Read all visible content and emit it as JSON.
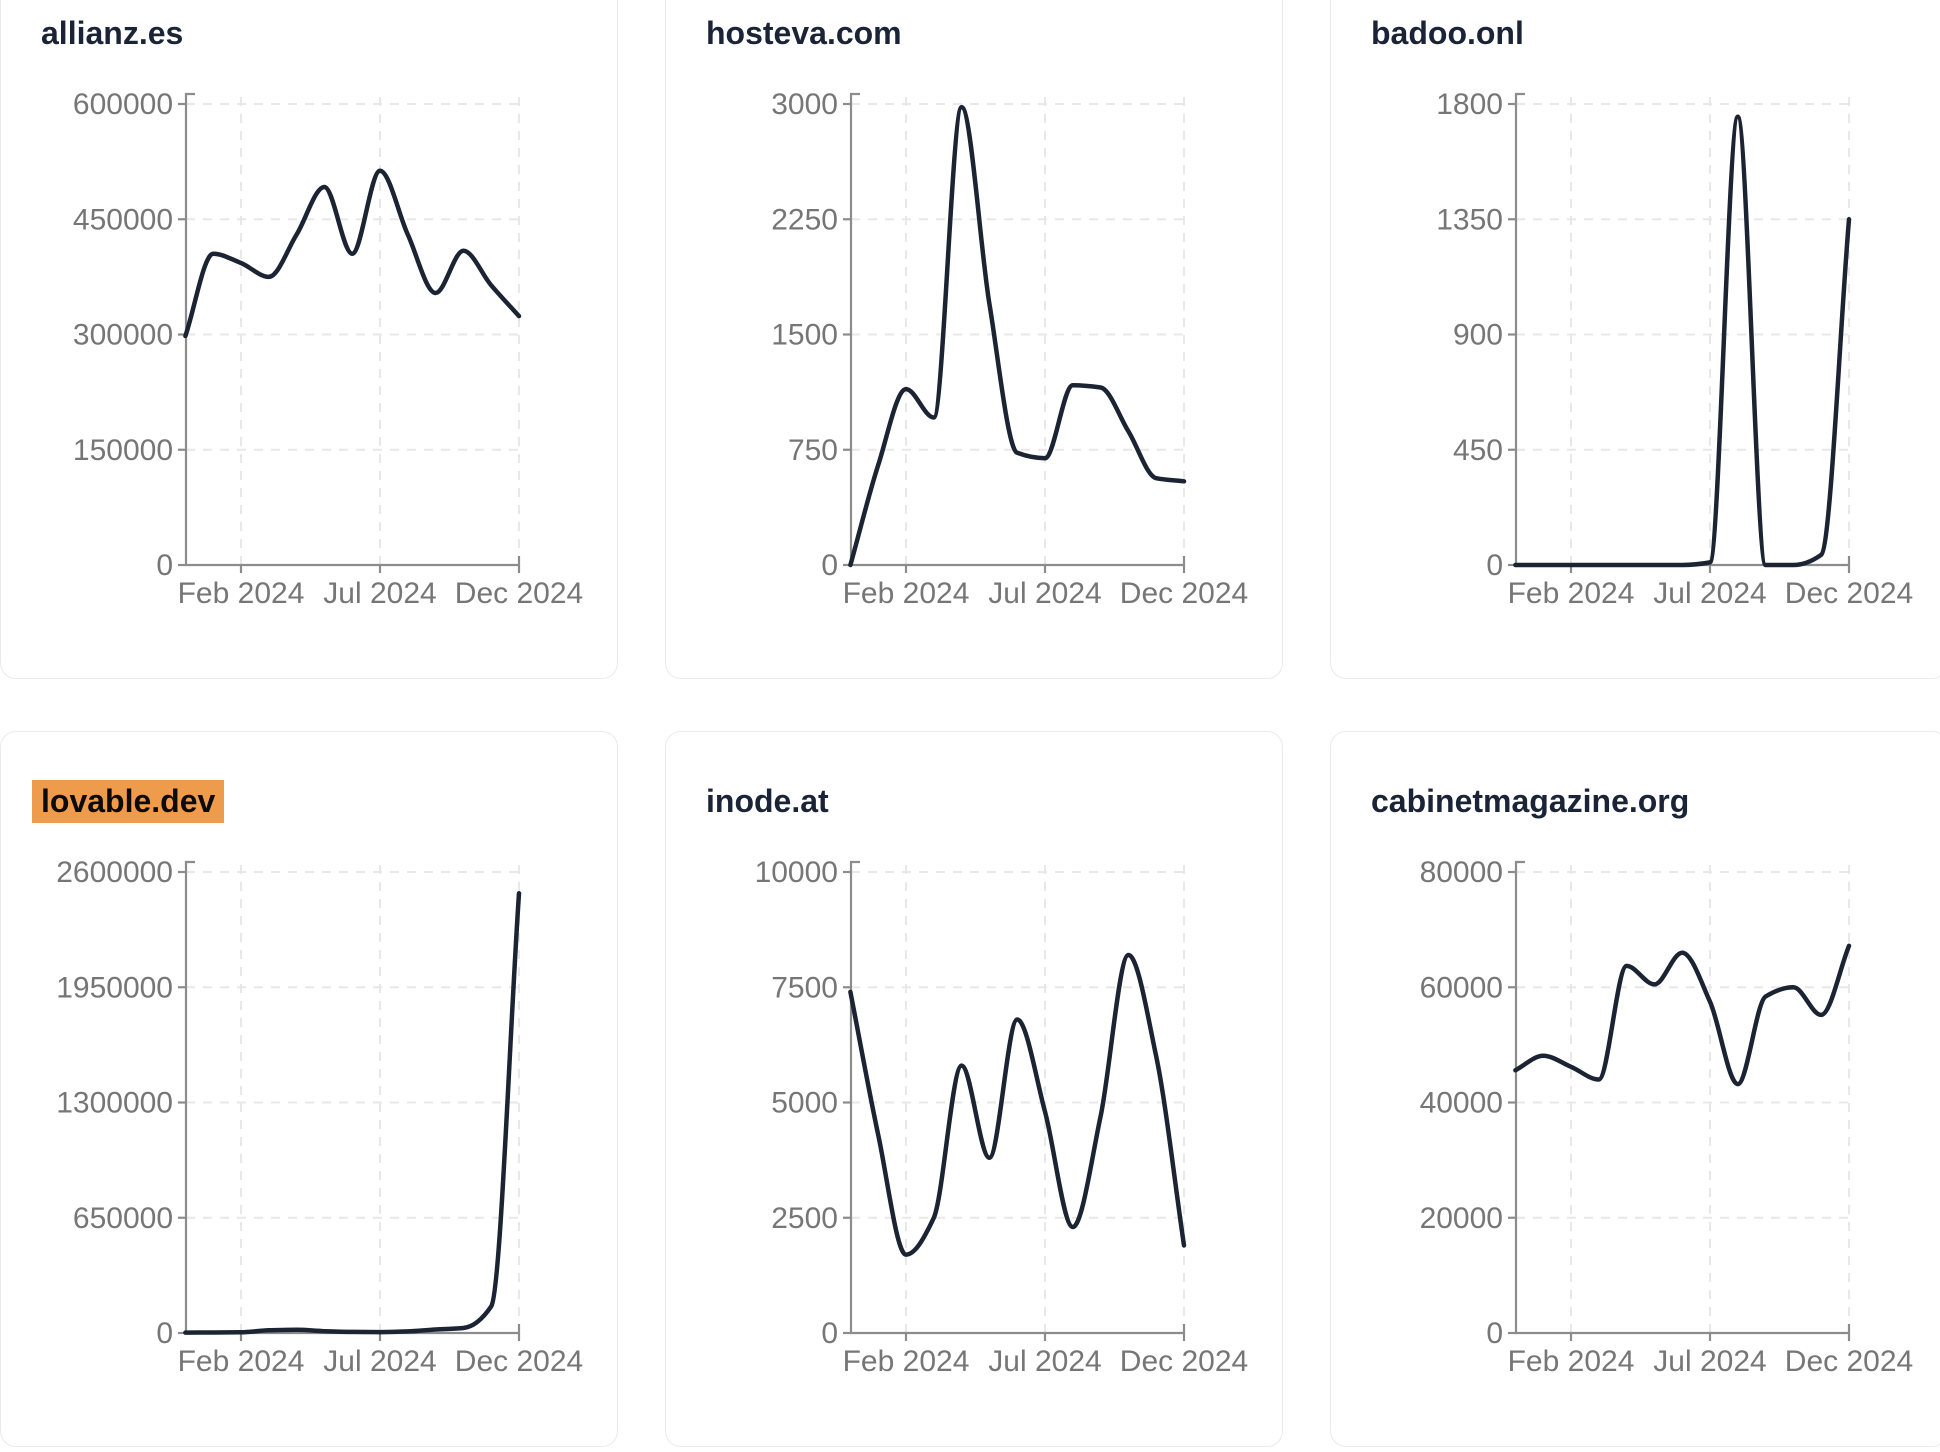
{
  "page": {
    "background": "#ffffff",
    "card_border_color": "#e9ebef",
    "title_color": "#1b2437",
    "highlight_bg_color": "#ef9b4c",
    "highlight_text_color": "#0b0b0b",
    "line_color": "#1c2434",
    "axis_color": "#8c8c8c",
    "tick_label_color": "#767676",
    "grid_color": "#e8e8e8"
  },
  "chart_data": [
    {
      "type": "line",
      "title": "allianz.es",
      "highlighted": false,
      "x": [
        "Dec 2023",
        "Jan 2024",
        "Feb 2024",
        "Mar 2024",
        "Apr 2024",
        "May 2024",
        "Jun 2024",
        "Jul 2024",
        "Aug 2024",
        "Sep 2024",
        "Oct 2024",
        "Nov 2024",
        "Dec 2024"
      ],
      "values": [
        298000,
        405000,
        393000,
        375000,
        430000,
        492000,
        405000,
        513000,
        430000,
        354000,
        409000,
        364000,
        324000
      ],
      "ylim": [
        0,
        600000
      ],
      "yticks": [
        0,
        150000,
        300000,
        450000,
        600000
      ],
      "xticks": [
        "Feb 2024",
        "Jul 2024",
        "Dec 2024"
      ],
      "xtick_indices": [
        2,
        7,
        12
      ],
      "grid": true,
      "legend": "none"
    },
    {
      "type": "line",
      "title": "hosteva.com",
      "highlighted": false,
      "x": [
        "Dec 2023",
        "Jan 2024",
        "Feb 2024",
        "Mar 2024",
        "Apr 2024",
        "May 2024",
        "Jun 2024",
        "Jul 2024",
        "Aug 2024",
        "Sep 2024",
        "Oct 2024",
        "Nov 2024",
        "Dec 2024"
      ],
      "values": [
        0,
        650,
        1145,
        960,
        2980,
        1700,
        730,
        695,
        1170,
        1155,
        870,
        565,
        545
      ],
      "ylim": [
        0,
        3000
      ],
      "yticks": [
        0,
        750,
        1500,
        2250,
        3000
      ],
      "xticks": [
        "Feb 2024",
        "Jul 2024",
        "Dec 2024"
      ],
      "xtick_indices": [
        2,
        7,
        12
      ],
      "grid": true,
      "legend": "none"
    },
    {
      "type": "line",
      "title": "badoo.onl",
      "highlighted": false,
      "x": [
        "Dec 2023",
        "Jan 2024",
        "Feb 2024",
        "Mar 2024",
        "Apr 2024",
        "May 2024",
        "Jun 2024",
        "Jul 2024",
        "Aug 2024",
        "Sep 2024",
        "Oct 2024",
        "Nov 2024",
        "Dec 2024"
      ],
      "values": [
        0,
        0,
        0,
        0,
        0,
        0,
        0,
        10,
        1750,
        0,
        0,
        40,
        1350
      ],
      "ylim": [
        0,
        1800
      ],
      "yticks": [
        0,
        450,
        900,
        1350,
        1800
      ],
      "xticks": [
        "Feb 2024",
        "Jul 2024",
        "Dec 2024"
      ],
      "xtick_indices": [
        2,
        7,
        12
      ],
      "grid": true,
      "legend": "none"
    },
    {
      "type": "line",
      "title": "lovable.dev",
      "highlighted": true,
      "x": [
        "Dec 2023",
        "Jan 2024",
        "Feb 2024",
        "Mar 2024",
        "Apr 2024",
        "May 2024",
        "Jun 2024",
        "Jul 2024",
        "Aug 2024",
        "Sep 2024",
        "Oct 2024",
        "Nov 2024",
        "Dec 2024"
      ],
      "values": [
        2000,
        3000,
        4000,
        15000,
        18000,
        10000,
        6000,
        5000,
        9000,
        20000,
        28000,
        150000,
        2480000
      ],
      "ylim": [
        0,
        2600000
      ],
      "yticks": [
        0,
        650000,
        1300000,
        1950000,
        2600000
      ],
      "xticks": [
        "Feb 2024",
        "Jul 2024",
        "Dec 2024"
      ],
      "xtick_indices": [
        2,
        7,
        12
      ],
      "grid": true,
      "legend": "none"
    },
    {
      "type": "line",
      "title": "inode.at",
      "highlighted": false,
      "x": [
        "Dec 2023",
        "Jan 2024",
        "Feb 2024",
        "Mar 2024",
        "Apr 2024",
        "May 2024",
        "Jun 2024",
        "Jul 2024",
        "Aug 2024",
        "Sep 2024",
        "Oct 2024",
        "Nov 2024",
        "Dec 2024"
      ],
      "values": [
        7400,
        4300,
        1700,
        2500,
        5800,
        3800,
        6800,
        4800,
        2300,
        4700,
        8200,
        6000,
        1900
      ],
      "ylim": [
        0,
        10000
      ],
      "yticks": [
        0,
        2500,
        5000,
        7500,
        10000
      ],
      "xticks": [
        "Feb 2024",
        "Jul 2024",
        "Dec 2024"
      ],
      "xtick_indices": [
        2,
        7,
        12
      ],
      "grid": true,
      "legend": "none"
    },
    {
      "type": "line",
      "title": "cabinetmagazine.org",
      "highlighted": false,
      "x": [
        "Dec 2023",
        "Jan 2024",
        "Feb 2024",
        "Mar 2024",
        "Apr 2024",
        "May 2024",
        "Jun 2024",
        "Jul 2024",
        "Aug 2024",
        "Sep 2024",
        "Oct 2024",
        "Nov 2024",
        "Dec 2024"
      ],
      "values": [
        45600,
        48100,
        46200,
        44000,
        63700,
        60500,
        66000,
        57500,
        43200,
        58400,
        60000,
        55200,
        67200
      ],
      "ylim": [
        0,
        80000
      ],
      "yticks": [
        0,
        20000,
        40000,
        60000,
        80000
      ],
      "xticks": [
        "Feb 2024",
        "Jul 2024",
        "Dec 2024"
      ],
      "xtick_indices": [
        2,
        7,
        12
      ],
      "grid": true,
      "legend": "none"
    }
  ]
}
